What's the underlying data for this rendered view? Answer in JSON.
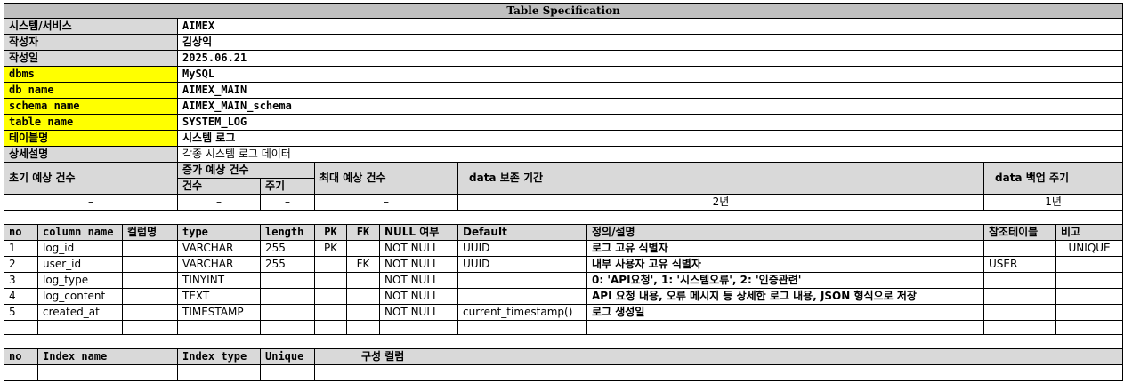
{
  "title": "Table Specification",
  "meta": [
    {
      "label": "시스템/서비스",
      "value": "AIMEX",
      "highlight": false
    },
    {
      "label": "작성자",
      "value": "김상익",
      "highlight": false
    },
    {
      "label": "작성일",
      "value": "2025.06.21",
      "highlight": false
    },
    {
      "label": "dbms",
      "value": "MySQL",
      "highlight": true
    },
    {
      "label": "db name",
      "value": "AIMEX_MAIN",
      "highlight": true
    },
    {
      "label": "schema name",
      "value": "AIMEX_MAIN_schema",
      "highlight": true
    },
    {
      "label": "table name",
      "value": "SYSTEM_LOG",
      "highlight": true
    },
    {
      "label": "테이블명",
      "value": "시스템 로그",
      "highlight": true
    },
    {
      "label": "상세설명",
      "value": "각종 시스템 로그 데이터",
      "highlight": false
    }
  ],
  "volume": {
    "initial_label": "초기 예상 건수",
    "growth_label": "증가 예상 건수",
    "count_label": "건수",
    "period_label": "주기",
    "max_label": "최대 예상 건수",
    "retention_label": "data 보존 기간",
    "backup_label": "data 백업 주기",
    "initial_value": "–",
    "count_value": "–",
    "period_value": "–",
    "max_value": "–",
    "retention_value": "2년",
    "backup_value": "1년"
  },
  "columns_header": [
    "no",
    "column name",
    "컬럼명",
    "type",
    "length",
    "PK",
    "FK",
    "NULL 여부",
    "Default",
    "정의/설명",
    "참조테이블",
    "비고"
  ],
  "columns": [
    {
      "no": "1",
      "name": "log_id",
      "kname": "",
      "type": "VARCHAR",
      "length": "255",
      "pk": "PK",
      "fk": "",
      "nullable": "NOT NULL",
      "default": "UUID",
      "desc": "로그 고유 식별자",
      "ref": "",
      "note": "UNIQUE"
    },
    {
      "no": "2",
      "name": "user_id",
      "kname": "",
      "type": "VARCHAR",
      "length": "255",
      "pk": "",
      "fk": "FK",
      "nullable": "NOT NULL",
      "default": "UUID",
      "desc": "내부 사용자 고유 식별자",
      "ref": "USER",
      "note": ""
    },
    {
      "no": "3",
      "name": "log_type",
      "kname": "",
      "type": "TINYINT",
      "length": "",
      "pk": "",
      "fk": "",
      "nullable": "NOT NULL",
      "default": "",
      "desc": "0: 'API요청', 1: '시스템오류', 2: '인증관련'",
      "ref": "",
      "note": ""
    },
    {
      "no": "4",
      "name": "log_content",
      "kname": "",
      "type": "TEXT",
      "length": "",
      "pk": "",
      "fk": "",
      "nullable": "NOT NULL",
      "default": "",
      "desc": "API 요청 내용, 오류 메시지 등 상세한 로그 내용, JSON 형식으로 저장",
      "ref": "",
      "note": ""
    },
    {
      "no": "5",
      "name": "created_at",
      "kname": "",
      "type": "TIMESTAMP",
      "length": "",
      "pk": "",
      "fk": "",
      "nullable": "NOT NULL",
      "default": "current_timestamp()",
      "desc": "로그 생성일",
      "ref": "",
      "note": ""
    }
  ],
  "index_header": [
    "no",
    "Index name",
    "Index type",
    "Unique",
    "구성 컬럼"
  ]
}
